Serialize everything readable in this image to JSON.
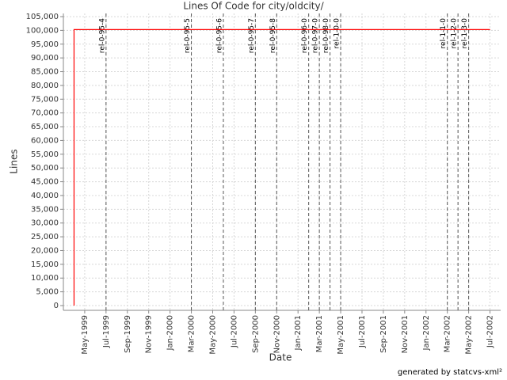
{
  "chart_data": {
    "type": "line",
    "title": "Lines Of Code for city/oldcity/",
    "x_label": "Date",
    "y_label": "Lines",
    "footer": "generated by statcvs-xml²",
    "x": [
      "1999-04",
      "1999-04",
      "2002-07"
    ],
    "series": [
      {
        "name": "Lines",
        "color": "#ff0000",
        "values": [
          0,
          100300,
          100300
        ]
      }
    ],
    "xlim": [
      "1999-03",
      "2002-08"
    ],
    "xticks": [
      {
        "value": "1999-05",
        "label": "May-1999"
      },
      {
        "value": "1999-07",
        "label": "Jul-1999"
      },
      {
        "value": "1999-09",
        "label": "Sep-1999"
      },
      {
        "value": "1999-11",
        "label": "Nov-1999"
      },
      {
        "value": "2000-01",
        "label": "Jan-2000"
      },
      {
        "value": "2000-03",
        "label": "Mar-2000"
      },
      {
        "value": "2000-05",
        "label": "May-2000"
      },
      {
        "value": "2000-07",
        "label": "Jul-2000"
      },
      {
        "value": "2000-09",
        "label": "Sep-2000"
      },
      {
        "value": "2000-11",
        "label": "Nov-2000"
      },
      {
        "value": "2001-01",
        "label": "Jan-2001"
      },
      {
        "value": "2001-03",
        "label": "Mar-2001"
      },
      {
        "value": "2001-05",
        "label": "May-2001"
      },
      {
        "value": "2001-07",
        "label": "Jul-2001"
      },
      {
        "value": "2001-09",
        "label": "Sep-2001"
      },
      {
        "value": "2001-11",
        "label": "Nov-2001"
      },
      {
        "value": "2002-01",
        "label": "Jan-2002"
      },
      {
        "value": "2002-03",
        "label": "Mar-2002"
      },
      {
        "value": "2002-05",
        "label": "May-2002"
      },
      {
        "value": "2002-07",
        "label": "Jul-2002"
      }
    ],
    "ylim": [
      0,
      105000
    ],
    "yticks": [
      0,
      {
        "value": 5000,
        "label": "5,000"
      },
      {
        "value": 10000,
        "label": "10,000"
      },
      {
        "value": 15000,
        "label": "15,000"
      },
      {
        "value": 20000,
        "label": "20,000"
      },
      {
        "value": 25000,
        "label": "25,000"
      },
      {
        "value": 30000,
        "label": "30,000"
      },
      {
        "value": 35000,
        "label": "35,000"
      },
      {
        "value": 40000,
        "label": "40,000"
      },
      {
        "value": 45000,
        "label": "45,000"
      },
      {
        "value": 50000,
        "label": "50,000"
      },
      {
        "value": 55000,
        "label": "55,000"
      },
      {
        "value": 60000,
        "label": "60,000"
      },
      {
        "value": 65000,
        "label": "65,000"
      },
      {
        "value": 70000,
        "label": "70,000"
      },
      {
        "value": 75000,
        "label": "75,000"
      },
      {
        "value": 80000,
        "label": "80,000"
      },
      {
        "value": 85000,
        "label": "85,000"
      },
      {
        "value": 90000,
        "label": "90,000"
      },
      {
        "value": 95000,
        "label": "95,000"
      },
      {
        "value": 100000,
        "label": "100,000"
      },
      {
        "value": 105000,
        "label": "105,000"
      }
    ],
    "grid": true,
    "markers": [
      {
        "label": "rel-0-95-4",
        "x": "1999-07"
      },
      {
        "label": "rel-0-95-5",
        "x": "2000-03"
      },
      {
        "label": "rel-0-95-6",
        "x": "2000-06"
      },
      {
        "label": "rel-0-95-7",
        "x": "2000-09"
      },
      {
        "label": "rel-0-95-8",
        "x": "2000-11"
      },
      {
        "label": "rel-0-96-0",
        "x": "2001-02"
      },
      {
        "label": "rel-0-97-0",
        "x": "2001-03"
      },
      {
        "label": "rel-0-98-0",
        "x": "2001-04"
      },
      {
        "label": "rel-1-0-0",
        "x": "2001-05"
      },
      {
        "label": "rel-1-1-0",
        "x": "2002-03"
      },
      {
        "label": "rel-1-2-0",
        "x": "2002-04"
      },
      {
        "label": "rel-1-3-0",
        "x": "2002-05"
      }
    ]
  }
}
